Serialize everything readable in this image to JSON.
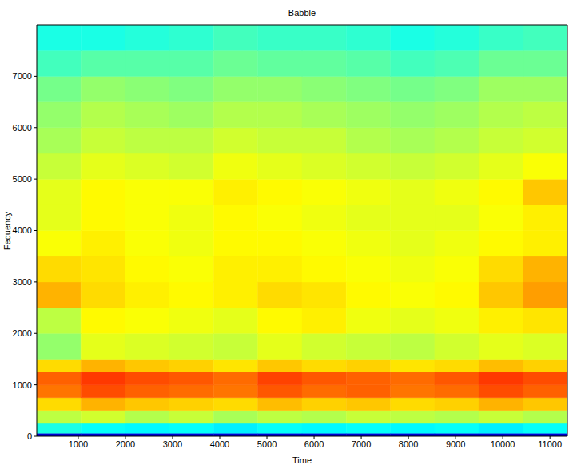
{
  "chart_data": {
    "type": "heatmap",
    "title": "Babble",
    "x_label": "Time",
    "y_label": "Fequency",
    "xlim": [
      120,
      11370
    ],
    "ylim": [
      0,
      8000
    ],
    "xticks": [
      1000,
      2000,
      3000,
      4000,
      5000,
      6000,
      7000,
      8000,
      9000,
      10000,
      11000
    ],
    "yticks": [
      0,
      1000,
      2000,
      3000,
      4000,
      5000,
      6000,
      7000
    ],
    "x_edges": [
      120,
      1057,
      1995,
      2932,
      3870,
      4807,
      5745,
      6682,
      7620,
      8557,
      9495,
      10432,
      11370
    ],
    "y_edges": [
      0,
      60,
      250,
      500,
      750,
      1000,
      1250,
      1500,
      2000,
      2500,
      3000,
      3500,
      4000,
      4500,
      5000,
      5500,
      6000,
      6500,
      7000,
      7500,
      8000
    ],
    "color_range": [
      0,
      1
    ],
    "cells": [
      [
        0.08,
        0.08,
        0.08,
        0.08,
        0.08,
        0.08,
        0.08,
        0.08,
        0.08,
        0.08,
        0.08,
        0.08
      ],
      [
        0.4,
        0.38,
        0.37,
        0.38,
        0.36,
        0.38,
        0.37,
        0.38,
        0.37,
        0.38,
        0.36,
        0.38
      ],
      [
        0.56,
        0.58,
        0.55,
        0.57,
        0.54,
        0.56,
        0.55,
        0.57,
        0.56,
        0.55,
        0.57,
        0.55
      ],
      [
        0.66,
        0.7,
        0.68,
        0.67,
        0.66,
        0.69,
        0.67,
        0.68,
        0.66,
        0.67,
        0.7,
        0.68
      ],
      [
        0.76,
        0.8,
        0.78,
        0.77,
        0.76,
        0.79,
        0.77,
        0.78,
        0.76,
        0.77,
        0.8,
        0.78
      ],
      [
        0.78,
        0.82,
        0.8,
        0.79,
        0.77,
        0.81,
        0.79,
        0.78,
        0.77,
        0.79,
        0.82,
        0.8
      ],
      [
        0.66,
        0.7,
        0.68,
        0.67,
        0.65,
        0.68,
        0.66,
        0.67,
        0.65,
        0.66,
        0.69,
        0.67
      ],
      [
        0.52,
        0.6,
        0.59,
        0.58,
        0.57,
        0.6,
        0.58,
        0.57,
        0.56,
        0.58,
        0.6,
        0.59
      ],
      [
        0.56,
        0.63,
        0.62,
        0.61,
        0.6,
        0.63,
        0.64,
        0.61,
        0.6,
        0.61,
        0.64,
        0.65
      ],
      [
        0.7,
        0.66,
        0.64,
        0.63,
        0.64,
        0.66,
        0.65,
        0.63,
        0.62,
        0.63,
        0.68,
        0.72
      ],
      [
        0.66,
        0.65,
        0.63,
        0.62,
        0.64,
        0.64,
        0.63,
        0.62,
        0.61,
        0.62,
        0.66,
        0.7
      ],
      [
        0.62,
        0.64,
        0.62,
        0.61,
        0.63,
        0.63,
        0.62,
        0.61,
        0.6,
        0.61,
        0.63,
        0.64
      ],
      [
        0.6,
        0.63,
        0.62,
        0.61,
        0.63,
        0.62,
        0.61,
        0.6,
        0.6,
        0.6,
        0.62,
        0.64
      ],
      [
        0.6,
        0.63,
        0.62,
        0.62,
        0.64,
        0.63,
        0.62,
        0.61,
        0.6,
        0.61,
        0.63,
        0.68
      ],
      [
        0.57,
        0.6,
        0.59,
        0.58,
        0.61,
        0.6,
        0.59,
        0.58,
        0.57,
        0.58,
        0.6,
        0.62
      ],
      [
        0.54,
        0.57,
        0.56,
        0.56,
        0.58,
        0.57,
        0.57,
        0.55,
        0.54,
        0.55,
        0.57,
        0.58
      ],
      [
        0.52,
        0.55,
        0.54,
        0.53,
        0.55,
        0.55,
        0.54,
        0.53,
        0.52,
        0.53,
        0.55,
        0.56
      ],
      [
        0.49,
        0.52,
        0.51,
        0.5,
        0.52,
        0.52,
        0.51,
        0.5,
        0.49,
        0.5,
        0.53,
        0.53
      ],
      [
        0.44,
        0.46,
        0.46,
        0.46,
        0.48,
        0.47,
        0.47,
        0.46,
        0.44,
        0.45,
        0.48,
        0.48
      ],
      [
        0.4,
        0.4,
        0.41,
        0.42,
        0.44,
        0.43,
        0.43,
        0.42,
        0.4,
        0.41,
        0.43,
        0.44
      ]
    ]
  }
}
